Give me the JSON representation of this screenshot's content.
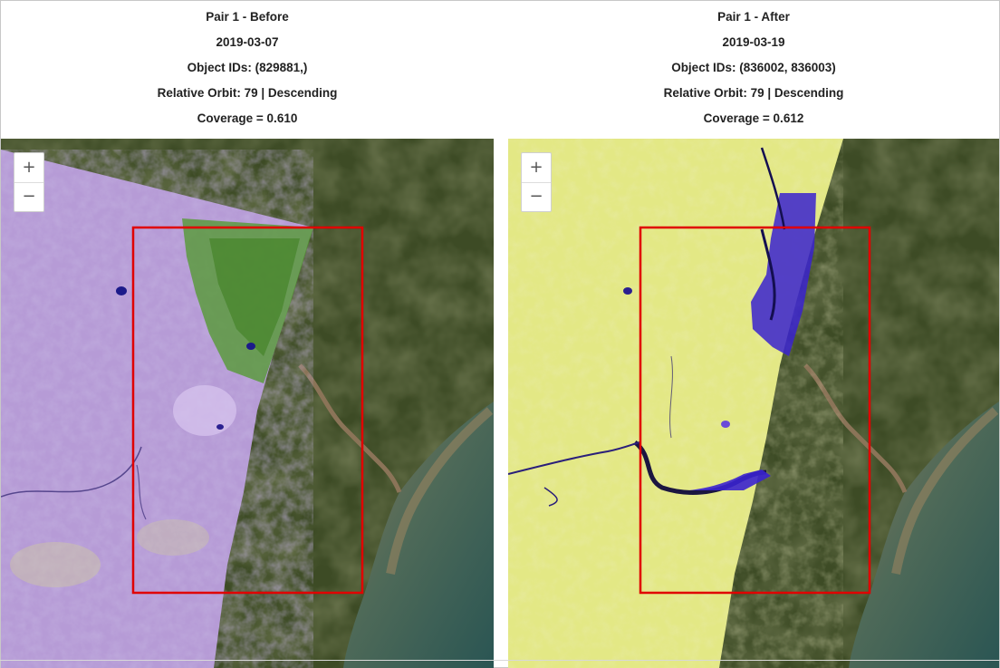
{
  "panels": [
    {
      "title": "Pair 1 - Before",
      "date": "2019-03-07",
      "object_ids": "Object IDs: (829881,)",
      "orbit": "Relative Orbit: 79 | Descending",
      "coverage": "Coverage = 0.610"
    },
    {
      "title": "Pair 1 - After",
      "date": "2019-03-19",
      "object_ids": "Object IDs: (836002, 836003)",
      "orbit": "Relative Orbit: 79 | Descending",
      "coverage": "Coverage = 0.612"
    }
  ],
  "map_controls": {
    "zoom_in_label": "+",
    "zoom_out_label": "−"
  },
  "colors": {
    "aoi_box": "#e00000",
    "basemap_land": "#3c4a24",
    "sea": "#2e5b52",
    "river_plume": "#9a7a55",
    "sar_before": "#b79ad8",
    "sar_after": "#e6ea86",
    "water_flood": "#3a2acc"
  }
}
